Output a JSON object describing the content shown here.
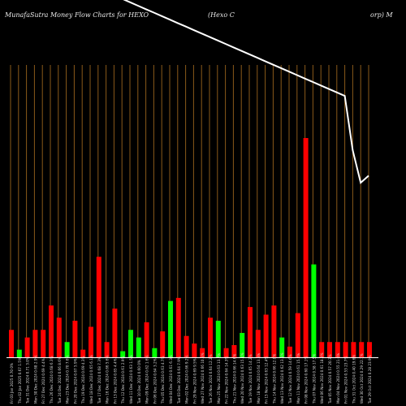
{
  "chart_data": {
    "type": "bar",
    "title_left": "MunafaSutra  Money Flow  Charts for HEXO",
    "title_mid": "(Hexo   C",
    "title_right": "orp) M",
    "categories": [
      "Fri 03 Jan 2025",
      "Thu 02 Jan 2025",
      "Tue 31 Dec 2024",
      "Mon 30 Dec 2024",
      "Fri 27 Dec 2024",
      "Thu 26 Dec 2024",
      "Tue 24 Dec 2024",
      "Mon 23 Dec 2024",
      "Fri 20 Dec 2024",
      "Thu 19 Dec 2024",
      "Wed 18 Dec 2024",
      "Tue 17 Dec 2024",
      "Mon 16 Dec 2024",
      "Fri 13 Dec 2024",
      "Thu 12 Dec 2024",
      "Wed 11 Dec 2024",
      "Tue 10 Dec 2024",
      "Mon 09 Dec 2024",
      "Fri 06 Dec 2024",
      "Thu 05 Dec 2024",
      "Wed 04 Dec 2024",
      "Tue 03 Dec 2024",
      "Mon 02 Dec 2024",
      "Fri 29 Nov 2024",
      "Wed 27 Nov 2024",
      "Tue 26 Nov 2024",
      "Mon 25 Nov 2024",
      "Fri 22 Nov 2024",
      "Thu 21 Nov 2024",
      "Wed 20 Nov 2024",
      "Tue 19 Nov 2024",
      "Mon 18 Nov 2024",
      "Fri 15 Nov 2024",
      "Thu 14 Nov 2024",
      "Wed 13 Nov 2024",
      "Tue 12 Nov 2024",
      "Mon 11 Nov 2024",
      "Fri 08 Nov 2024",
      "Thu 07 Nov 2024",
      "Wed 06 Nov 2024",
      "Tue 05 Nov 2024",
      "Mon 04 Nov 2024",
      "Fri 01 Nov 2024",
      "Thu 31 Oct 2024",
      "Wed 30 Oct 2024",
      "Tue 29 Oct 2024"
    ],
    "x_tick_labels": [
      "0.70 0%",
      "0.67 1.5%",
      "0.71 3.0%",
      "0.68 2.9%",
      "0.69 4.4%",
      "0.68 6.3%",
      "0.66 8.6%",
      "0.70 7.6%",
      "0.67 5.9%",
      "0.69 4.3%",
      "0.65 6.1%",
      "0.68 7.3%",
      "0.66 5.6%",
      "0.65 4.4%",
      "0.61 2.9%",
      "0.63 1.5%",
      "0.60 0%",
      "0.62 1.6%",
      "0.64 3.2%",
      "0.63 4.7%",
      "0.61 6.3%",
      "0.64 7.9%",
      "0.66 9.2%",
      "0.69 9.5%",
      "0.66 10.8%",
      "0.64 12.2%",
      "0.63 13.7%",
      "0.64 14.3%",
      "0.66 14.6%",
      "0.63 15.1%",
      "0.65 14.2%",
      "0.64 13.8%",
      "0.63 12.4%",
      "0.66 12.0%",
      "0.62 13.8%",
      "0.59 14.6%",
      "0.61 15.2%",
      "0.60 17.1%",
      "0.58 17.5%",
      "0.61 18.9%",
      "0.57 20.3%",
      "0.55 21.0%",
      "0.53 23.7%",
      "0.40 19.6%",
      "0.29 22.1%",
      "0.28 23.9%"
    ],
    "values": [
      1.8,
      0.5,
      1.3,
      1.8,
      1.8,
      3.4,
      2.6,
      1.0,
      2.4,
      0.5,
      2.0,
      6.6,
      1.0,
      3.2,
      0.4,
      1.8,
      1.3,
      2.3,
      0.6,
      1.7,
      3.7,
      3.9,
      1.4,
      0.9,
      0.6,
      2.6,
      2.4,
      0.6,
      0.8,
      1.6,
      3.3,
      1.8,
      2.8,
      3.4,
      1.3,
      0.7,
      2.9,
      14.4,
      6.1,
      1.0,
      1.0,
      1.0,
      1.0,
      1.0,
      1.0,
      1.0
    ],
    "directions": [
      "red",
      "green",
      "red",
      "red",
      "red",
      "red",
      "red",
      "green",
      "red",
      "red",
      "red",
      "red",
      "red",
      "red",
      "green",
      "green",
      "green",
      "red",
      "green",
      "red",
      "green",
      "red",
      "red",
      "red",
      "red",
      "red",
      "green",
      "red",
      "red",
      "green",
      "red",
      "red",
      "red",
      "red",
      "green",
      "red",
      "red",
      "red",
      "green",
      "red",
      "red",
      "red",
      "red",
      "red",
      "red",
      "red"
    ],
    "price_line": [
      2200,
      2180,
      2150,
      2120,
      2090,
      2060,
      2030,
      2000,
      1970,
      1940,
      1910,
      1880,
      1850,
      1820,
      1790,
      1760,
      1730,
      1700,
      1670,
      1640,
      1610,
      1580,
      1550,
      1520,
      1490,
      1460,
      1430,
      1400,
      1370,
      1340,
      1310,
      1280,
      1250,
      1220,
      1190,
      1160,
      1130,
      1100,
      1070,
      1040,
      1010,
      980,
      950,
      480,
      200,
      260
    ],
    "colors": {
      "inflow": "#00ff00",
      "outflow": "#ff0000",
      "grid": "#8a5a1a",
      "baseline": "#ffffff",
      "price_line": "#ffffff"
    },
    "grid": true
  }
}
